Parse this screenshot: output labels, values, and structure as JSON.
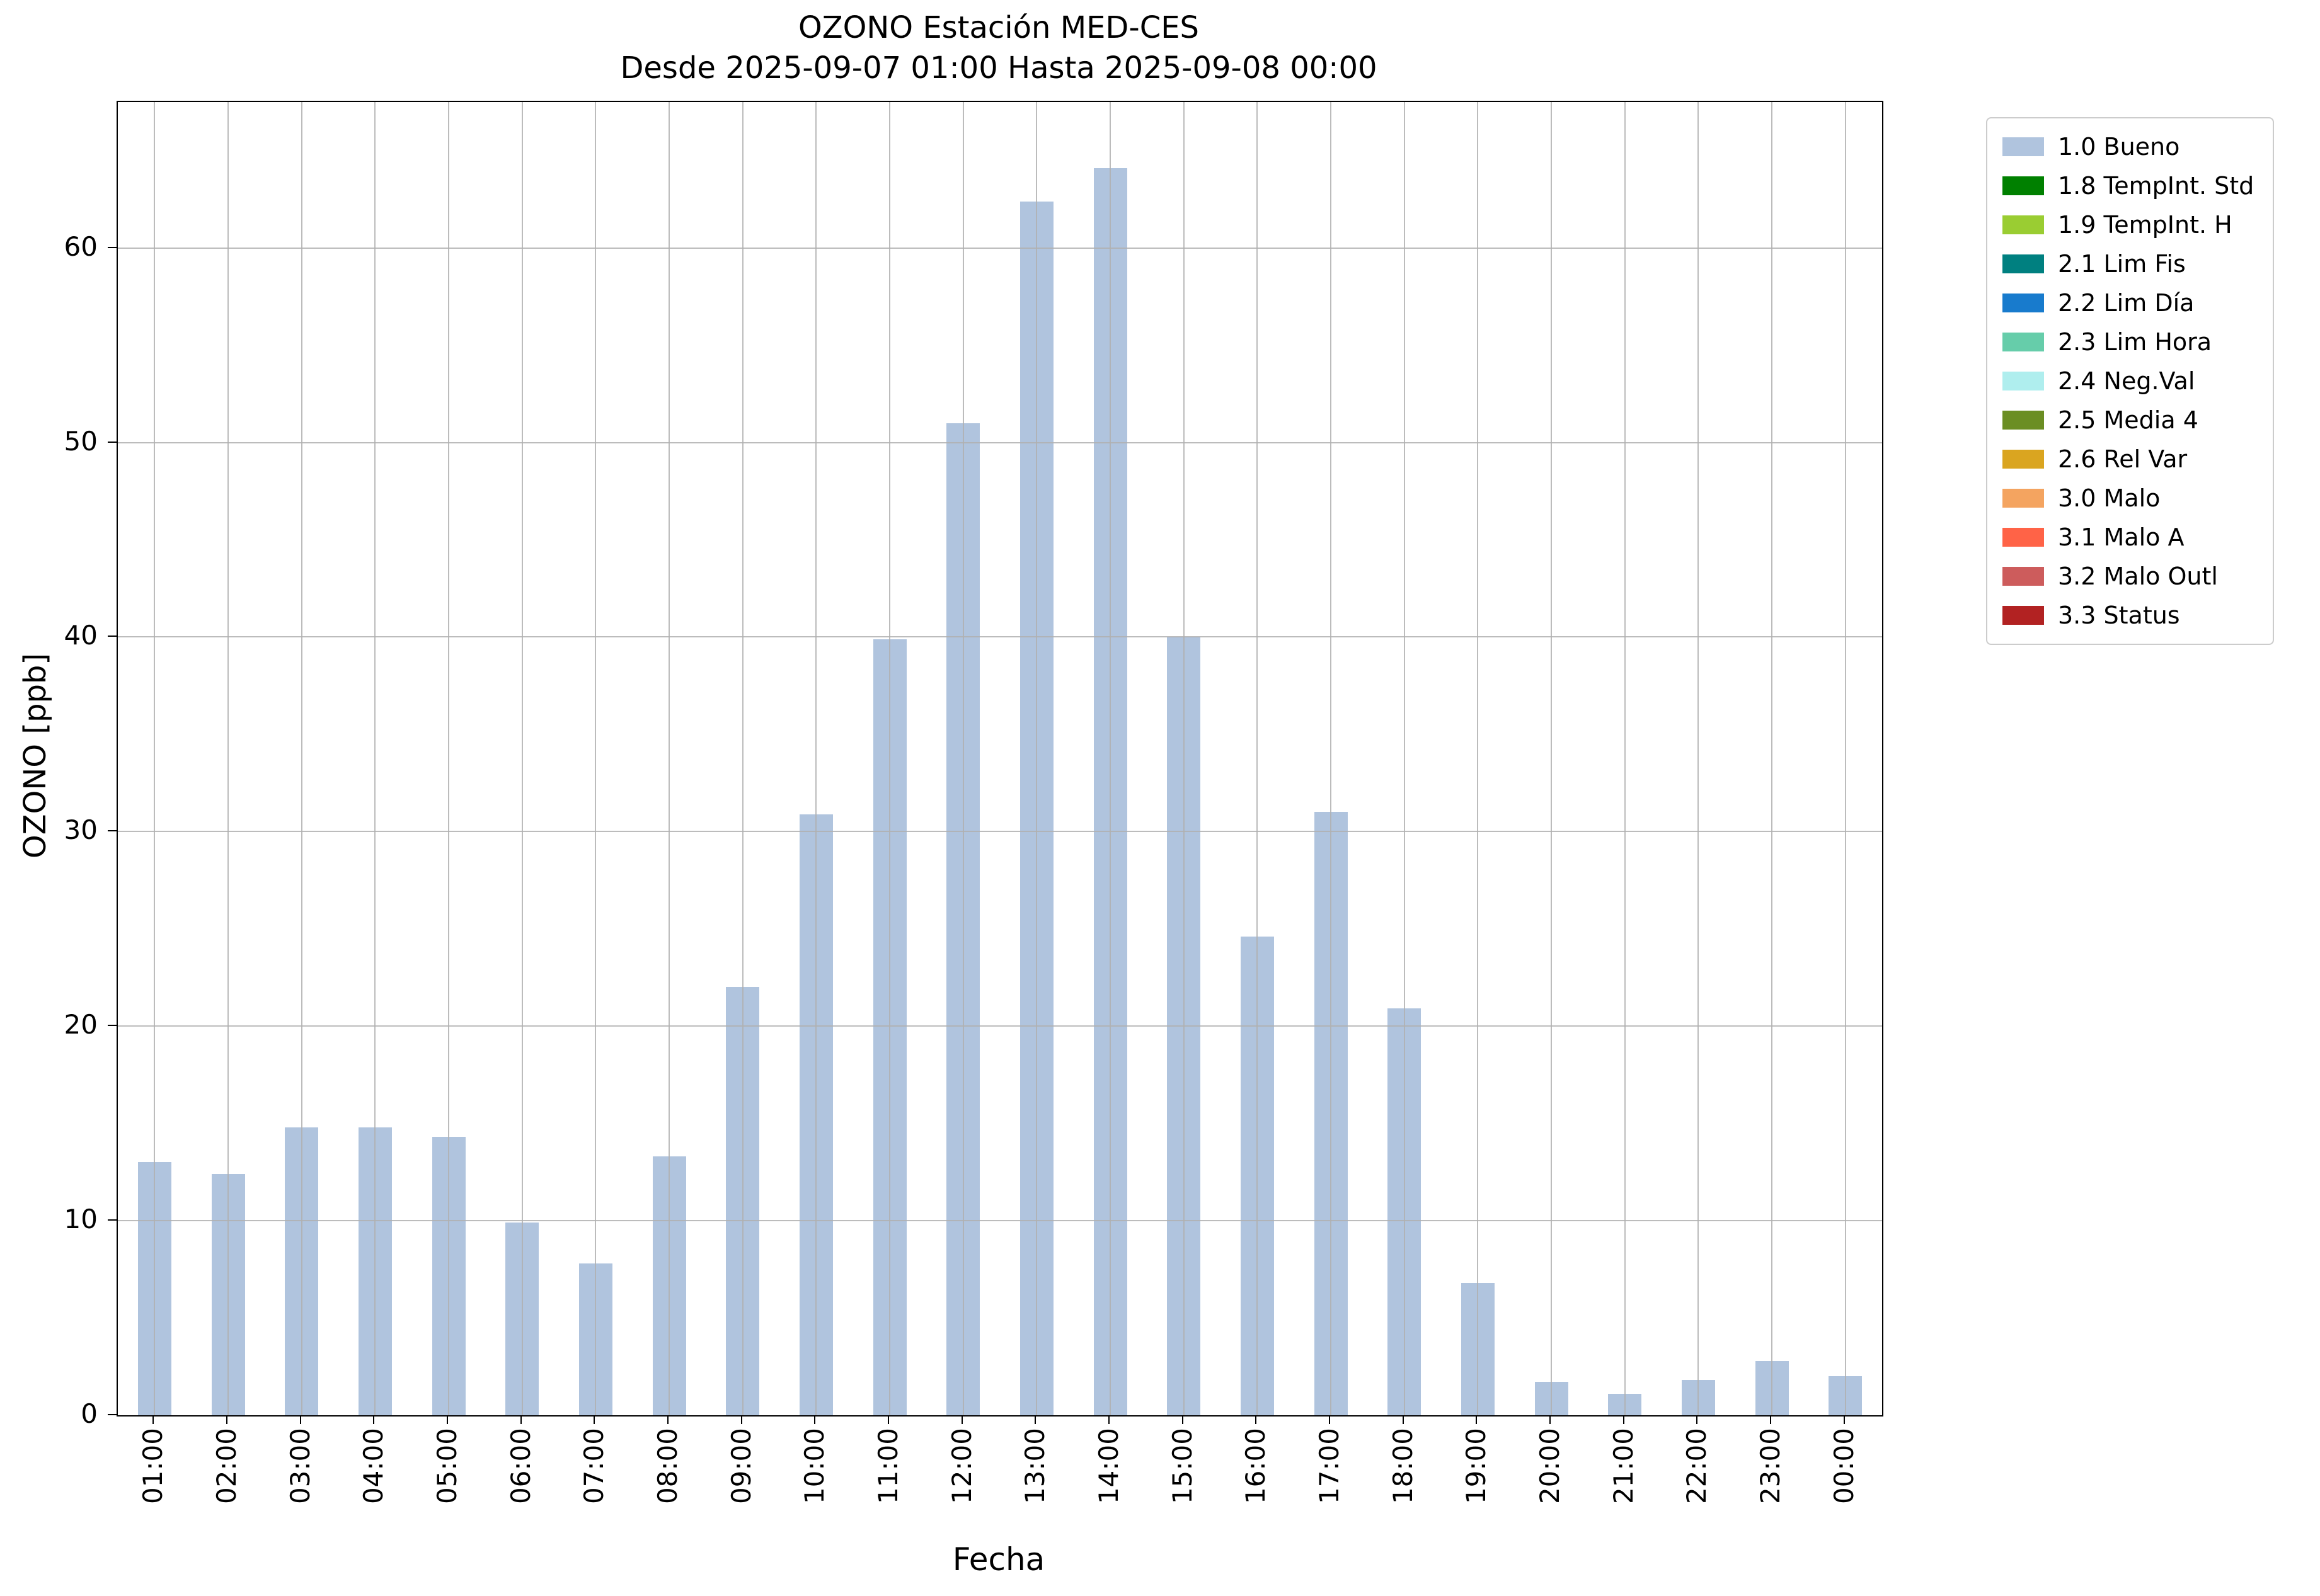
{
  "chart_data": {
    "type": "bar",
    "title_line1": "OZONO Estación MED-CES",
    "title_line2": "Desde 2025-09-07 01:00 Hasta 2025-09-08 00:00",
    "xlabel": "Fecha",
    "ylabel": "OZONO [ppb]",
    "categories": [
      "01:00",
      "02:00",
      "03:00",
      "04:00",
      "05:00",
      "06:00",
      "07:00",
      "08:00",
      "09:00",
      "10:00",
      "11:00",
      "12:00",
      "13:00",
      "14:00",
      "15:00",
      "16:00",
      "17:00",
      "18:00",
      "19:00",
      "20:00",
      "21:00",
      "22:00",
      "23:00",
      "00:00"
    ],
    "values": [
      13.0,
      12.4,
      14.8,
      14.8,
      14.3,
      9.9,
      7.8,
      13.3,
      22.0,
      30.9,
      39.9,
      51.0,
      62.4,
      64.1,
      40.0,
      24.6,
      31.0,
      20.9,
      6.8,
      1.7,
      1.1,
      1.8,
      2.8,
      2.0
    ],
    "ylim": [
      0,
      67.5
    ],
    "yticks": [
      0,
      10,
      20,
      30,
      40,
      50,
      60
    ],
    "grid": true,
    "bar_color": "#b0c4de",
    "legend_position": "outside upper right",
    "legend": [
      {
        "label": "1.0 Bueno",
        "color": "#b0c4de"
      },
      {
        "label": "1.8 TempInt. Std",
        "color": "#008000"
      },
      {
        "label": "1.9 TempInt. H",
        "color": "#9acd32"
      },
      {
        "label": "2.1 Lim Fis",
        "color": "#008080"
      },
      {
        "label": "2.2 Lim Día",
        "color": "#187bcd"
      },
      {
        "label": "2.3 Lim Hora",
        "color": "#66cdaa"
      },
      {
        "label": "2.4 Neg.Val",
        "color": "#afeeee"
      },
      {
        "label": "2.5 Media 4",
        "color": "#6b8e23"
      },
      {
        "label": "2.6 Rel Var",
        "color": "#daa520"
      },
      {
        "label": "3.0 Malo",
        "color": "#f4a460"
      },
      {
        "label": "3.1 Malo A",
        "color": "#ff6347"
      },
      {
        "label": "3.2 Malo Outl",
        "color": "#cd5c5c"
      },
      {
        "label": "3.3 Status",
        "color": "#b22222"
      }
    ]
  }
}
